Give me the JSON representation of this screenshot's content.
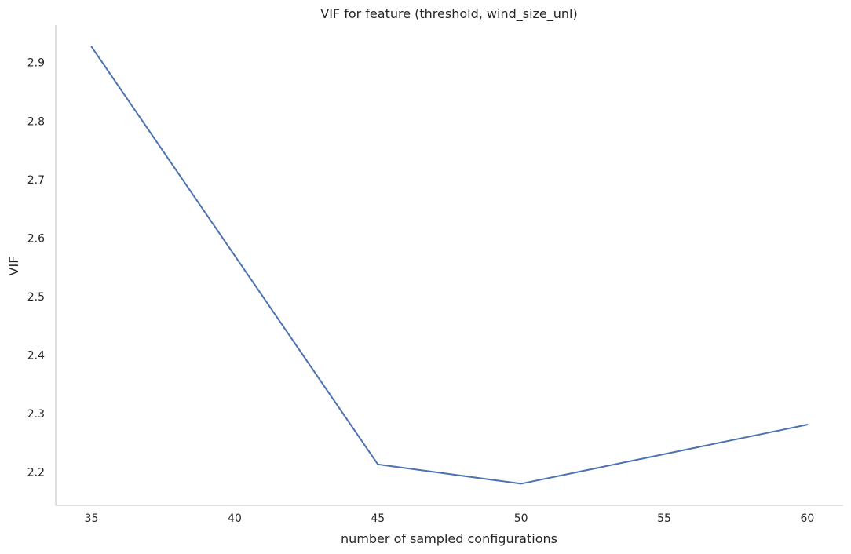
{
  "chart_data": {
    "type": "line",
    "title": "VIF for feature (threshold, wind_size_unl)",
    "xlabel": "number of sampled configurations",
    "ylabel": "VIF",
    "x": [
      35,
      45,
      50,
      60
    ],
    "series": [
      {
        "values": [
          2.927,
          2.213,
          2.18,
          2.281
        ],
        "color": "#4c72b0"
      }
    ],
    "xlim": [
      33.75,
      61.25
    ],
    "ylim": [
      2.143,
      2.964
    ],
    "xticks": [
      35,
      40,
      45,
      50,
      55,
      60
    ],
    "yticks": [
      2.2,
      2.3,
      2.4,
      2.5,
      2.6,
      2.7,
      2.8,
      2.9
    ],
    "grid": false,
    "legend": "none"
  }
}
